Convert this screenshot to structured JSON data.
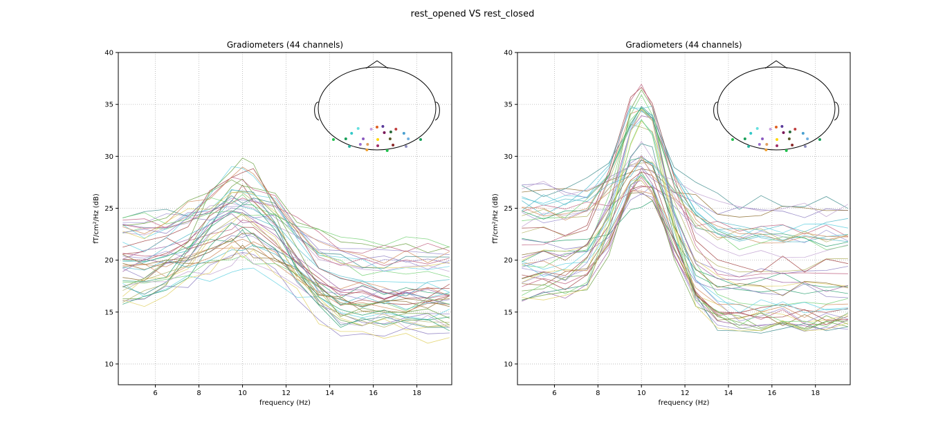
{
  "figure": {
    "title": "rest_opened VS rest_closed"
  },
  "chart_data": [
    {
      "type": "line",
      "title": "Gradiometers (44 channels)",
      "xlabel": "frequency (Hz)",
      "ylabel": "fT/cm²/Hz (dB)",
      "xlim": [
        4.3,
        19.6
      ],
      "ylim": [
        8,
        40
      ],
      "xticks": [
        6,
        8,
        10,
        12,
        14,
        16,
        18
      ],
      "yticks": [
        10,
        15,
        20,
        25,
        30,
        35,
        40
      ],
      "grid": true,
      "x": [
        4.5,
        5.5,
        6.5,
        7.5,
        8.5,
        9.5,
        10.0,
        10.5,
        11.5,
        12.5,
        13.5,
        14.5,
        15.5,
        16.5,
        17.5,
        18.5,
        19.5
      ],
      "peak_hz": 10,
      "baseline_min": 15.5,
      "baseline_max": 24.0,
      "peak_range": [
        18.5,
        29.5
      ],
      "tail_range": [
        12.5,
        20.8
      ],
      "sensor_colors": [
        "#22c04e",
        "#1aa05a",
        "#2bb5a0",
        "#33c8c8",
        "#66e0e0",
        "#8a5ac0",
        "#9b6fd0",
        "#c8a0e0",
        "#e0a060",
        "#f0a030",
        "#e06020",
        "#ffd700",
        "#a0306a",
        "#7a1a5a",
        "#5a3a9a",
        "#2a6a3a",
        "#5a5a2a",
        "#8a2a2a",
        "#c04040",
        "#4aa0d0",
        "#70b0e0",
        "#9090c0"
      ],
      "series_palette": [
        "#4db8c8",
        "#5fd0e0",
        "#8a7ac0",
        "#9b8fd0",
        "#2aa070",
        "#6aa040",
        "#8a6a2a",
        "#a04040",
        "#c06080",
        "#d08a5a",
        "#e0d060",
        "#70d070",
        "#b0b060",
        "#3a8a8a",
        "#9a5aa0",
        "#c0a0d0"
      ]
    },
    {
      "type": "line",
      "title": "Gradiometers (44 channels)",
      "xlabel": "frequency (Hz)",
      "ylabel": "fT/cm²/Hz (dB)",
      "xlim": [
        4.3,
        19.6
      ],
      "ylim": [
        8,
        40
      ],
      "xticks": [
        6,
        8,
        10,
        12,
        14,
        16,
        18
      ],
      "yticks": [
        10,
        15,
        20,
        25,
        30,
        35,
        40
      ],
      "grid": true,
      "x": [
        4.5,
        5.5,
        6.5,
        7.5,
        8.5,
        9.5,
        10.0,
        10.5,
        11.5,
        12.5,
        13.5,
        14.5,
        15.5,
        16.5,
        17.5,
        18.5,
        19.5
      ],
      "peak_hz": 10,
      "baseline_min": 16.5,
      "baseline_max": 27.0,
      "peak_range": [
        25.5,
        37.4
      ],
      "tail_range": [
        12.8,
        25.0
      ],
      "sensor_colors": [
        "#22c04e",
        "#1aa05a",
        "#2bb5a0",
        "#33c8c8",
        "#66e0e0",
        "#8a5ac0",
        "#9b6fd0",
        "#c8a0e0",
        "#e0a060",
        "#f0a030",
        "#e06020",
        "#ffd700",
        "#a0306a",
        "#7a1a5a",
        "#5a3a9a",
        "#2a6a3a",
        "#5a5a2a",
        "#8a2a2a",
        "#c04040",
        "#4aa0d0",
        "#70b0e0",
        "#9090c0"
      ],
      "series_palette": [
        "#4db8c8",
        "#5fd0e0",
        "#8a7ac0",
        "#9b8fd0",
        "#2aa070",
        "#6aa040",
        "#8a6a2a",
        "#a04040",
        "#c06080",
        "#d08a5a",
        "#e0d060",
        "#70d070",
        "#b0b060",
        "#3a8a8a",
        "#9a5aa0",
        "#c0a0d0"
      ]
    }
  ]
}
